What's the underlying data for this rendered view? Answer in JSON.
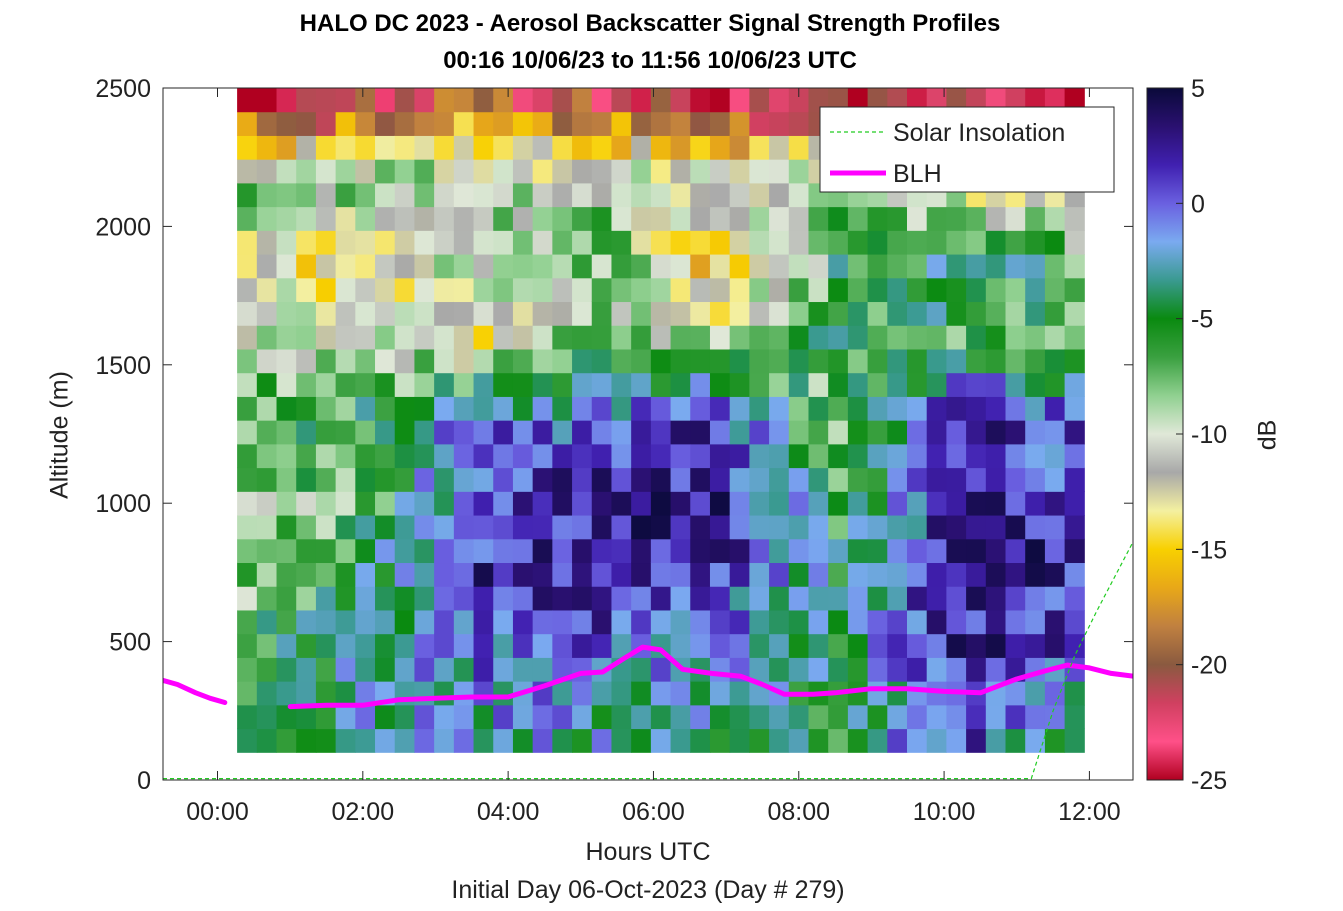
{
  "title": "HALO DC 2023 - Aerosol Backscatter Signal Strength Profiles",
  "subtitle": "00:16 10/06/23 to 11:56 10/06/23  UTC",
  "footer": "Initial Day 06-Oct-2023 (Day # 279)",
  "colors": {
    "blh": "#ff00ff",
    "solar": "#22cc22",
    "colormap_stops": [
      "#0a0a3a",
      "#2a1070",
      "#4020b0",
      "#6a60e0",
      "#7aaaf0",
      "#3a9a90",
      "#0a8a10",
      "#3aa040",
      "#90d090",
      "#e0e8d8",
      "#a8a8a8",
      "#f4f0a0",
      "#f8d000",
      "#e8a818",
      "#c08040",
      "#8a5a40",
      "#d04060",
      "#ff5088",
      "#b00020"
    ]
  },
  "chart_data": {
    "type": "heatmap",
    "title": "HALO DC 2023 - Aerosol Backscatter Signal Strength Profiles",
    "subtitle": "00:16 10/06/23 to 11:56 10/06/23  UTC",
    "xlabel": "Hours UTC",
    "ylabel": "Altitude (m)",
    "xlim": [
      -0.75,
      12.6
    ],
    "ylim": [
      0,
      2500
    ],
    "x_ticks": [
      0,
      2,
      4,
      6,
      8,
      10,
      12
    ],
    "x_tick_labels": [
      "00:00",
      "02:00",
      "04:00",
      "06:00",
      "08:00",
      "10:00",
      "12:00"
    ],
    "y_ticks": [
      0,
      500,
      1000,
      1500,
      2000,
      2500
    ],
    "y_tick_labels": [
      "0",
      "500",
      "1000",
      "1500",
      "2000",
      "2500"
    ],
    "heatmap": {
      "time_start": 0.27,
      "time_end": 11.93,
      "alt_start": 100,
      "alt_end": 2500,
      "note_profile_dB": [
        [
          -4,
          -6,
          -8,
          -9,
          -6,
          -10,
          -12,
          -8,
          -24
        ],
        [
          -3,
          -3,
          -4,
          -7,
          -5,
          -10,
          -14,
          -8,
          -22
        ],
        [
          -2,
          -1,
          2,
          1,
          0,
          -13,
          -8,
          -9,
          -20
        ],
        [
          -3,
          -1,
          2,
          3,
          0,
          -8,
          -7,
          -10,
          -21
        ],
        [
          -4,
          -2,
          1,
          3,
          1,
          -10,
          -16,
          -10,
          -23
        ],
        [
          -5,
          -4,
          -4,
          -6,
          -9,
          -5,
          -6,
          -9,
          -23
        ],
        [
          1,
          2,
          3,
          2,
          2,
          -6,
          -4,
          -12,
          -22
        ],
        [
          -4,
          0,
          2,
          1,
          0,
          -7,
          -6,
          -15,
          -23
        ]
      ],
      "colorbar_label": "dB",
      "colorbar_range": [
        -25,
        5
      ],
      "colorbar_ticks": [
        5,
        0,
        -5,
        -10,
        -15,
        -20,
        -25
      ],
      "colorbar_tick_labels": [
        "5",
        "0",
        "-5",
        "-10",
        "-15",
        "-20",
        "-25"
      ]
    },
    "series": [
      {
        "name": "BLH",
        "x": [
          -0.75,
          -0.55,
          -0.3,
          -0.1,
          0.1,
          0.5,
          1.0,
          1.5,
          2.0,
          2.5,
          3.0,
          3.5,
          4.0,
          4.5,
          5.0,
          5.3,
          5.6,
          5.85,
          6.1,
          6.4,
          6.8,
          7.2,
          7.5,
          7.8,
          8.2,
          8.5,
          9.0,
          9.5,
          10.0,
          10.5,
          11.0,
          11.4,
          11.7,
          12.0,
          12.3,
          12.6
        ],
        "y": [
          360,
          345,
          315,
          295,
          280,
          null,
          265,
          270,
          270,
          290,
          295,
          300,
          300,
          340,
          385,
          390,
          440,
          480,
          470,
          400,
          385,
          375,
          345,
          310,
          310,
          315,
          330,
          330,
          320,
          315,
          365,
          395,
          415,
          405,
          385,
          375
        ],
        "style": "solid"
      },
      {
        "name": "Solar Insolation",
        "x": [
          -0.75,
          11.2,
          11.5,
          11.8,
          12.1,
          12.4,
          12.6
        ],
        "y": [
          5,
          5,
          250,
          450,
          610,
          760,
          860
        ],
        "style": "dashed"
      }
    ],
    "legend": {
      "position": "top-right",
      "entries": [
        "Solar Insolation",
        "BLH"
      ]
    },
    "grid": false
  }
}
